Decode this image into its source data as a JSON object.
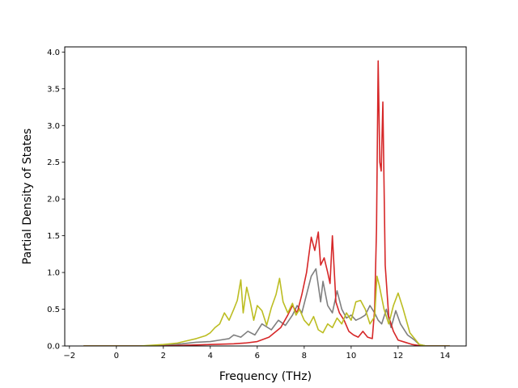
{
  "chart_data": {
    "type": "line",
    "title": "",
    "xlabel": "Frequency (THz)",
    "ylabel": "Partial Density of States",
    "xlim": [
      -2.2,
      14.9
    ],
    "ylim": [
      0.0,
      4.07
    ],
    "x_ticks": [
      -2,
      0,
      2,
      4,
      6,
      8,
      10,
      12,
      14
    ],
    "y_ticks": [
      0.0,
      0.5,
      1.0,
      1.5,
      2.0,
      2.5,
      3.0,
      3.5,
      4.0
    ],
    "x_tick_labels": [
      "−2",
      "0",
      "2",
      "4",
      "6",
      "8",
      "10",
      "12",
      "14"
    ],
    "y_tick_labels": [
      "0.0",
      "0.5",
      "1.0",
      "1.5",
      "2.0",
      "2.5",
      "3.0",
      "3.5",
      "4.0"
    ],
    "grid": false,
    "legend": "none",
    "series": [
      {
        "color": "#7f7f7f",
        "x": [
          -1.4,
          0.0,
          1.0,
          2.0,
          2.8,
          3.4,
          4.0,
          4.4,
          4.8,
          5.0,
          5.3,
          5.6,
          5.9,
          6.2,
          6.6,
          6.9,
          7.2,
          7.5,
          7.7,
          7.9,
          8.1,
          8.3,
          8.5,
          8.7,
          8.8,
          9.0,
          9.2,
          9.4,
          9.6,
          9.8,
          10.0,
          10.2,
          10.4,
          10.6,
          10.8,
          11.0,
          11.15,
          11.3,
          11.5,
          11.7,
          11.9,
          12.1,
          12.4,
          12.7,
          12.9,
          13.2,
          14.2
        ],
        "values": [
          0.0,
          0.0,
          0.0,
          0.01,
          0.03,
          0.05,
          0.06,
          0.08,
          0.1,
          0.15,
          0.12,
          0.2,
          0.15,
          0.3,
          0.22,
          0.35,
          0.28,
          0.42,
          0.55,
          0.45,
          0.7,
          0.95,
          1.05,
          0.6,
          0.88,
          0.55,
          0.45,
          0.75,
          0.5,
          0.38,
          0.42,
          0.35,
          0.38,
          0.42,
          0.55,
          0.45,
          0.35,
          0.3,
          0.5,
          0.25,
          0.48,
          0.3,
          0.15,
          0.08,
          0.02,
          0.0,
          0.0
        ]
      },
      {
        "color": "#d62728",
        "x": [
          -1.4,
          0.0,
          2.0,
          3.0,
          4.0,
          5.0,
          5.5,
          6.0,
          6.5,
          7.0,
          7.3,
          7.5,
          7.7,
          7.9,
          8.1,
          8.3,
          8.45,
          8.6,
          8.7,
          8.85,
          9.0,
          9.1,
          9.2,
          9.35,
          9.5,
          9.7,
          9.9,
          10.1,
          10.3,
          10.5,
          10.7,
          10.9,
          11.0,
          11.08,
          11.15,
          11.22,
          11.28,
          11.35,
          11.45,
          11.6,
          11.8,
          12.0,
          12.3,
          12.6,
          12.8,
          13.0,
          14.2
        ],
        "values": [
          0.0,
          0.0,
          0.0,
          0.01,
          0.02,
          0.03,
          0.04,
          0.06,
          0.12,
          0.25,
          0.42,
          0.55,
          0.45,
          0.7,
          1.0,
          1.48,
          1.3,
          1.55,
          1.1,
          1.2,
          1.0,
          0.85,
          1.5,
          0.6,
          0.45,
          0.35,
          0.2,
          0.15,
          0.12,
          0.2,
          0.12,
          0.1,
          0.5,
          1.6,
          3.88,
          2.5,
          2.38,
          3.32,
          1.1,
          0.4,
          0.2,
          0.08,
          0.05,
          0.02,
          0.01,
          0.0,
          0.0
        ]
      },
      {
        "color": "#bcbd22",
        "x": [
          -1.4,
          0.0,
          1.0,
          2.0,
          2.6,
          3.0,
          3.4,
          3.8,
          4.0,
          4.2,
          4.4,
          4.6,
          4.8,
          5.0,
          5.15,
          5.3,
          5.4,
          5.55,
          5.7,
          5.85,
          6.0,
          6.2,
          6.4,
          6.6,
          6.8,
          6.95,
          7.1,
          7.3,
          7.5,
          7.65,
          7.8,
          8.0,
          8.2,
          8.4,
          8.6,
          8.8,
          9.0,
          9.2,
          9.4,
          9.6,
          9.8,
          10.0,
          10.2,
          10.4,
          10.6,
          10.8,
          11.0,
          11.1,
          11.2,
          11.4,
          11.6,
          11.8,
          12.0,
          12.2,
          12.5,
          12.7,
          12.9,
          13.2,
          14.2
        ],
        "values": [
          0.0,
          0.0,
          0.0,
          0.02,
          0.04,
          0.07,
          0.1,
          0.14,
          0.18,
          0.25,
          0.3,
          0.45,
          0.35,
          0.5,
          0.62,
          0.9,
          0.45,
          0.8,
          0.6,
          0.35,
          0.55,
          0.48,
          0.28,
          0.52,
          0.7,
          0.92,
          0.6,
          0.45,
          0.58,
          0.42,
          0.5,
          0.35,
          0.28,
          0.4,
          0.22,
          0.18,
          0.3,
          0.25,
          0.38,
          0.3,
          0.45,
          0.35,
          0.6,
          0.62,
          0.5,
          0.3,
          0.4,
          0.95,
          0.82,
          0.5,
          0.3,
          0.55,
          0.72,
          0.52,
          0.18,
          0.1,
          0.02,
          0.0,
          0.0
        ]
      }
    ]
  }
}
